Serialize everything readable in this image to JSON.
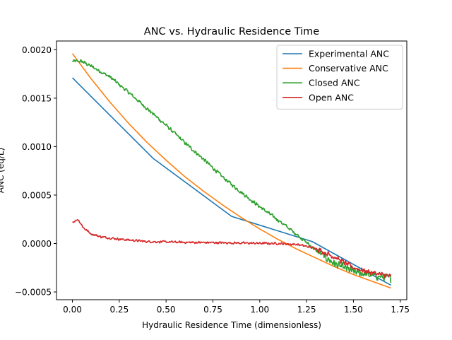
{
  "chart_data": {
    "type": "line",
    "title": "ANC vs. Hydraulic Residence Time",
    "xlabel": "Hydraulic Residence Time (dimensionless)",
    "ylabel": "ANC (eq/L)",
    "xlim": [
      -0.085,
      1.785
    ],
    "ylim": [
      -0.00058,
      0.00209
    ],
    "x_ticks": [
      0.0,
      0.25,
      0.5,
      0.75,
      1.0,
      1.25,
      1.5,
      1.75
    ],
    "x_tick_labels": [
      "0.00",
      "0.25",
      "0.50",
      "0.75",
      "1.00",
      "1.25",
      "1.50",
      "1.75"
    ],
    "y_ticks": [
      -0.0005,
      0.0,
      0.0005,
      0.001,
      0.0015,
      0.002
    ],
    "y_tick_labels": [
      "−0.0005",
      "0.0000",
      "0.0005",
      "0.0010",
      "0.0015",
      "0.0020"
    ],
    "grid": false,
    "legend_position": "top-right",
    "series": [
      {
        "name": "Experimental ANC",
        "color": "#1f77b4",
        "noise": 0,
        "points": [
          [
            0.0,
            0.00171
          ],
          [
            0.43,
            0.00088
          ],
          [
            0.85,
            0.00028
          ],
          [
            1.28,
            2e-05
          ],
          [
            1.7,
            -0.00043
          ]
        ]
      },
      {
        "name": "Conservative ANC",
        "color": "#ff7f0e",
        "noise": 0,
        "points": [
          [
            0.0,
            0.00196
          ],
          [
            0.1,
            0.0017
          ],
          [
            0.2,
            0.00146
          ],
          [
            0.3,
            0.00124
          ],
          [
            0.4,
            0.00104
          ],
          [
            0.5,
            0.00086
          ],
          [
            0.6,
            0.00069
          ],
          [
            0.7,
            0.00054
          ],
          [
            0.8,
            0.0004
          ],
          [
            0.9,
            0.00027
          ],
          [
            1.0,
            0.00015
          ],
          [
            1.1,
            4e-05
          ],
          [
            1.2,
            -6e-05
          ],
          [
            1.3,
            -0.00015
          ],
          [
            1.4,
            -0.00024
          ],
          [
            1.5,
            -0.00032
          ],
          [
            1.6,
            -0.00039
          ],
          [
            1.7,
            -0.00046
          ]
        ]
      },
      {
        "name": "Closed ANC",
        "color": "#2ca02c",
        "noise": 2.2e-05,
        "points": [
          [
            0.0,
            0.00188
          ],
          [
            0.05,
            0.00188
          ],
          [
            0.1,
            0.00183
          ],
          [
            0.2,
            0.00172
          ],
          [
            0.3,
            0.00156
          ],
          [
            0.4,
            0.00139
          ],
          [
            0.5,
            0.00122
          ],
          [
            0.6,
            0.00104
          ],
          [
            0.7,
            0.00087
          ],
          [
            0.8,
            0.00069
          ],
          [
            0.9,
            0.00053
          ],
          [
            1.0,
            0.00038
          ],
          [
            1.1,
            0.00024
          ],
          [
            1.2,
            9e-05
          ],
          [
            1.3,
            -7e-05
          ],
          [
            1.4,
            -0.00021
          ],
          [
            1.5,
            -0.00029
          ],
          [
            1.6,
            -0.00033
          ],
          [
            1.7,
            -0.00036
          ]
        ]
      },
      {
        "name": "Open ANC",
        "color": "#d62728",
        "noise": 1.4e-05,
        "points": [
          [
            0.0,
            0.00022
          ],
          [
            0.03,
            0.00025
          ],
          [
            0.06,
            0.00016
          ],
          [
            0.1,
            0.0001
          ],
          [
            0.15,
            7e-05
          ],
          [
            0.25,
            4.5e-05
          ],
          [
            0.4,
            2e-05
          ],
          [
            0.6,
            1.2e-05
          ],
          [
            0.8,
            8e-06
          ],
          [
            1.0,
            2e-06
          ],
          [
            1.1,
            0.0
          ],
          [
            1.2,
            -1e-05
          ],
          [
            1.3,
            -5e-05
          ],
          [
            1.4,
            -0.00014
          ],
          [
            1.5,
            -0.00025
          ],
          [
            1.6,
            -0.0003
          ],
          [
            1.7,
            -0.00034
          ]
        ]
      }
    ]
  }
}
